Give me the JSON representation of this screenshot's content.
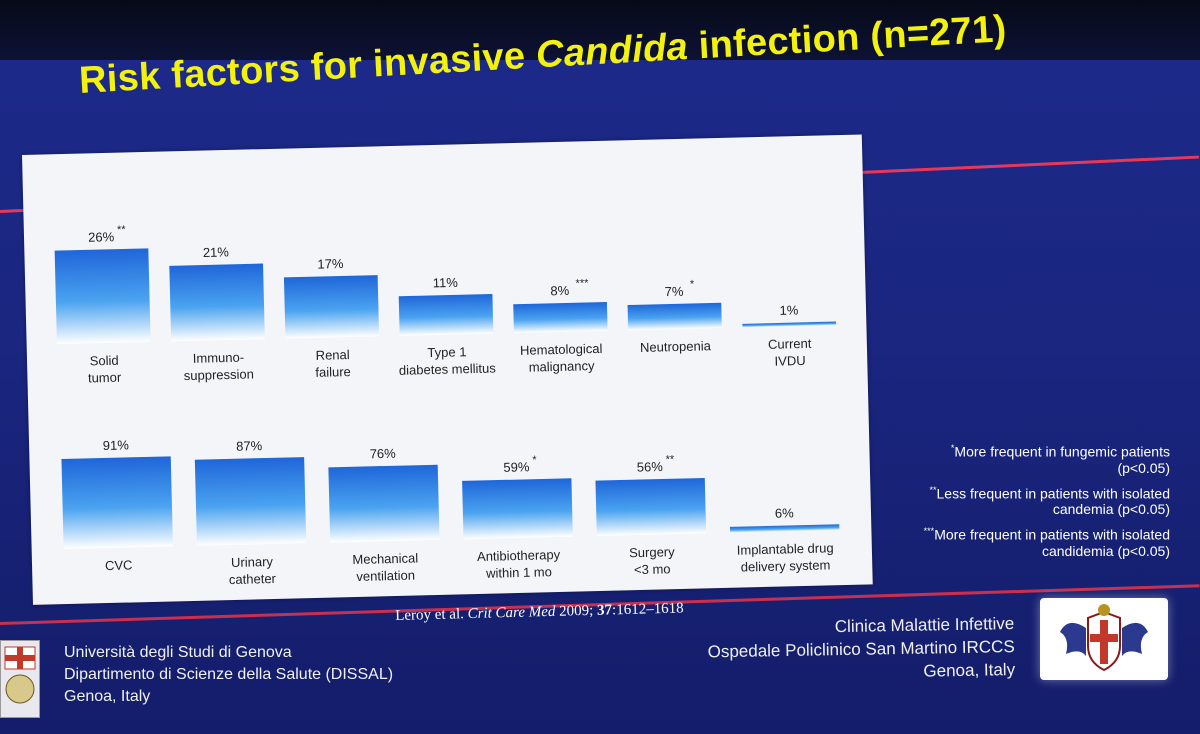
{
  "slide": {
    "title_prefix": "Risk factors for invasive ",
    "title_italic": "Candida",
    "title_suffix": " infection (n=271)"
  },
  "chart_data": [
    {
      "type": "bar",
      "categories": [
        "Solid tumor",
        "Immuno-suppression",
        "Renal failure",
        "Type 1 diabetes mellitus",
        "Hematological malignancy",
        "Neutropenia",
        "Current IVDU"
      ],
      "values": [
        26,
        21,
        17,
        11,
        8,
        7,
        1
      ],
      "value_labels": [
        "26%",
        "21%",
        "17%",
        "11%",
        "8%",
        "7%",
        "1%"
      ],
      "markers": [
        "**",
        "",
        "",
        "",
        "***",
        "*",
        ""
      ],
      "label_lines": [
        [
          "Solid",
          "tumor"
        ],
        [
          "Immuno-",
          "suppression"
        ],
        [
          "Renal",
          "failure"
        ],
        [
          "Type 1",
          "diabetes mellitus"
        ],
        [
          "Hematological",
          "malignancy"
        ],
        [
          "Neutropenia"
        ],
        [
          "Current",
          "IVDU"
        ]
      ]
    },
    {
      "type": "bar",
      "categories": [
        "CVC",
        "Urinary catheter",
        "Mechanical ventilation",
        "Antibiotherapy within 1 mo",
        "Surgery <3 mo",
        "Implantable drug delivery system"
      ],
      "values": [
        91,
        87,
        76,
        59,
        56,
        6
      ],
      "value_labels": [
        "91%",
        "87%",
        "76%",
        "59%",
        "56%",
        "6%"
      ],
      "markers": [
        "",
        "",
        "",
        "*",
        "**",
        ""
      ],
      "label_lines": [
        [
          "CVC"
        ],
        [
          "Urinary",
          "catheter"
        ],
        [
          "Mechanical",
          "ventilation"
        ],
        [
          "Antibiotherapy",
          "within 1 mo"
        ],
        [
          "Surgery",
          "<3 mo"
        ],
        [
          "Implantable drug",
          "delivery system"
        ]
      ]
    }
  ],
  "notes": [
    {
      "mark": "*",
      "text": "More frequent in fungemic patients (p<0.05)"
    },
    {
      "mark": "**",
      "text": "Less frequent in patients with isolated candemia (p<0.05)"
    },
    {
      "mark": "***",
      "text": "More frequent in patients with isolated candidemia (p<0.05)"
    }
  ],
  "citation": {
    "authors": "Leroy et al. ",
    "journal": "Crit Care Med",
    "year": " 2009; ",
    "volume": "37",
    "pages": ":1612–1618"
  },
  "left_affiliation": {
    "line1": "Università degli Studi di Genova",
    "line2": "Dipartimento di Scienze della Salute (DISSAL)",
    "line3": "Genoa, Italy"
  },
  "right_affiliation": {
    "line1": "Clinica Malattie Infettive",
    "line2": "Ospedale Policlinico San Martino IRCCS",
    "line3": "Genoa, Italy"
  },
  "colors": {
    "background": "#1c2a8a",
    "title": "#f2f20e",
    "accent_line": "#e8385a",
    "bar_top": "#1f66d9",
    "bar_mid": "#4aa3f0",
    "bar_bottom": "#ffffff"
  }
}
